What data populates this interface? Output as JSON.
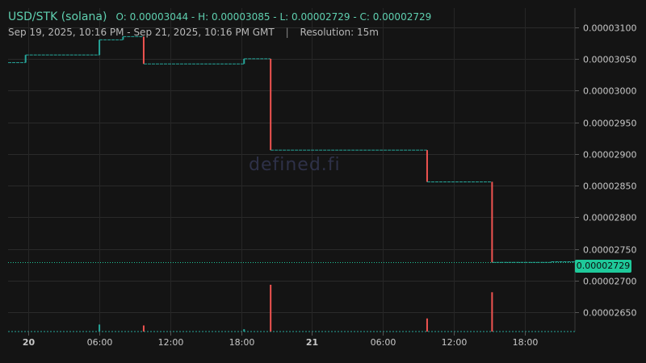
{
  "header": {
    "symbol": "USD/STK (solana)",
    "ohlc": "O: 0.00003044 - H: 0.00003085 - L: 0.00002729 - C: 0.00002729",
    "range": "Sep 19, 2025, 10:16 PM - Sep 21, 2025, 10:16 PM GMT",
    "separator": "|",
    "resolution": "Resolution: 15m"
  },
  "watermark": "defined.fi",
  "last_price_label": "0.00002729",
  "colors": {
    "up": "#26a69a",
    "down": "#ef5350",
    "text": "#c8c8c8",
    "accent": "#1fc99a"
  },
  "chart_data": {
    "type": "candlestick",
    "resolution": "15m",
    "x_range": [
      "2025-09-19 22:16",
      "2025-09-21 22:16"
    ],
    "ylim": [
      2.62e-05,
      3.13e-05
    ],
    "y_ticks": [
      "0.00003100",
      "0.00003050",
      "0.00003000",
      "0.00002950",
      "0.00002900",
      "0.00002850",
      "0.00002800",
      "0.00002750",
      "0.00002700",
      "0.00002650"
    ],
    "x_ticks": [
      {
        "label": "20",
        "t": "2025-09-20 00:00",
        "bold": true
      },
      {
        "label": "06:00",
        "t": "2025-09-20 06:00"
      },
      {
        "label": "12:00",
        "t": "2025-09-20 12:00"
      },
      {
        "label": "18:00",
        "t": "2025-09-20 18:00"
      },
      {
        "label": "21",
        "t": "2025-09-21 00:00",
        "bold": true
      },
      {
        "label": "06:00",
        "t": "2025-09-21 06:00"
      },
      {
        "label": "12:00",
        "t": "2025-09-21 12:00"
      },
      {
        "label": "18:00",
        "t": "2025-09-21 18:00"
      }
    ],
    "price_steps": [
      {
        "t": "2025-09-19 22:16",
        "open": 3.044e-05,
        "close": 3.044e-05
      },
      {
        "t": "2025-09-19 23:45",
        "open": 3.044e-05,
        "close": 3.056e-05
      },
      {
        "t": "2025-09-20 06:00",
        "open": 3.056e-05,
        "close": 3.08e-05
      },
      {
        "t": "2025-09-20 08:00",
        "open": 3.08e-05,
        "close": 3.085e-05
      },
      {
        "t": "2025-09-20 09:45",
        "open": 3.085e-05,
        "close": 3.042e-05
      },
      {
        "t": "2025-09-20 18:15",
        "open": 3.042e-05,
        "close": 3.05e-05
      },
      {
        "t": "2025-09-20 20:30",
        "open": 3.05e-05,
        "close": 2.906e-05
      },
      {
        "t": "2025-09-21 09:45",
        "open": 2.906e-05,
        "close": 2.856e-05
      },
      {
        "t": "2025-09-21 15:15",
        "open": 2.856e-05,
        "close": 2.729e-05
      },
      {
        "t": "2025-09-21 20:15",
        "open": 2.729e-05,
        "close": 2.73e-05
      }
    ],
    "end_time": "2025-09-21 22:16",
    "last_price": 2.729e-05,
    "volume_spikes": [
      {
        "t": "2025-09-20 06:00",
        "level": 0.15,
        "dir": "up"
      },
      {
        "t": "2025-09-20 09:45",
        "level": 0.13,
        "dir": "down"
      },
      {
        "t": "2025-09-20 18:15",
        "level": 0.05,
        "dir": "up"
      },
      {
        "t": "2025-09-20 20:30",
        "level": 1.0,
        "dir": "down"
      },
      {
        "t": "2025-09-21 09:45",
        "level": 0.28,
        "dir": "down"
      },
      {
        "t": "2025-09-21 15:15",
        "level": 0.84,
        "dir": "down"
      }
    ],
    "grid": true,
    "legend": "none"
  }
}
